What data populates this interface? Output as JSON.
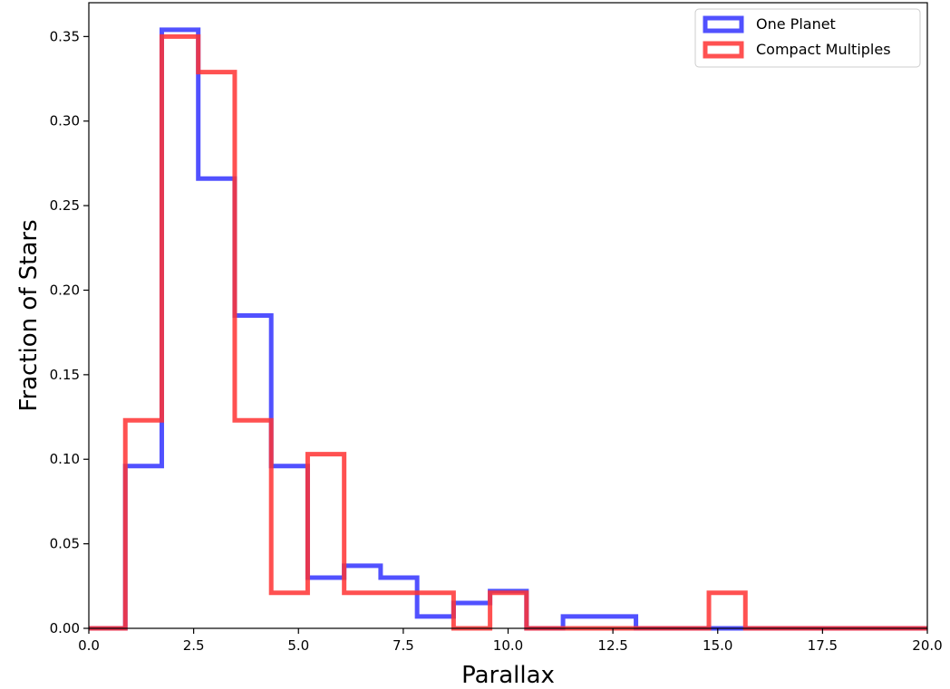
{
  "chart_data": {
    "type": "histogram-step",
    "xlabel": "Parallax",
    "ylabel": "Fraction of Stars",
    "xlim": [
      0.0,
      20.0
    ],
    "ylim": [
      0.0,
      0.37
    ],
    "x_ticks": [
      "0.0",
      "2.5",
      "5.0",
      "7.5",
      "10.0",
      "12.5",
      "15.0",
      "17.5",
      "20.0"
    ],
    "y_ticks": [
      "0.00",
      "0.05",
      "0.10",
      "0.15",
      "0.20",
      "0.25",
      "0.30",
      "0.35"
    ],
    "bin_edges": [
      0.0,
      0.87,
      1.74,
      2.61,
      3.48,
      4.35,
      5.22,
      6.09,
      6.96,
      7.83,
      8.7,
      9.57,
      10.44,
      11.31,
      12.18,
      13.05,
      13.92,
      14.79,
      15.66,
      16.53,
      17.4,
      18.27,
      19.14,
      20.0
    ],
    "series": [
      {
        "name": "One Planet",
        "color": "#3333ff",
        "values": [
          0.0,
          0.096,
          0.354,
          0.266,
          0.185,
          0.096,
          0.03,
          0.037,
          0.03,
          0.007,
          0.015,
          0.022,
          0.0,
          0.007,
          0.007,
          0.0,
          0.0,
          0.0,
          0.0,
          0.0,
          0.0,
          0.0,
          0.0
        ]
      },
      {
        "name": "Compact Multiples",
        "color": "#ff3333",
        "values": [
          0.0,
          0.123,
          0.35,
          0.329,
          0.123,
          0.021,
          0.103,
          0.021,
          0.021,
          0.021,
          0.0,
          0.021,
          0.0,
          0.0,
          0.0,
          0.0,
          0.0,
          0.021,
          0.0,
          0.0,
          0.0,
          0.0,
          0.0
        ]
      }
    ],
    "legend_position": "top-right",
    "grid": false
  }
}
